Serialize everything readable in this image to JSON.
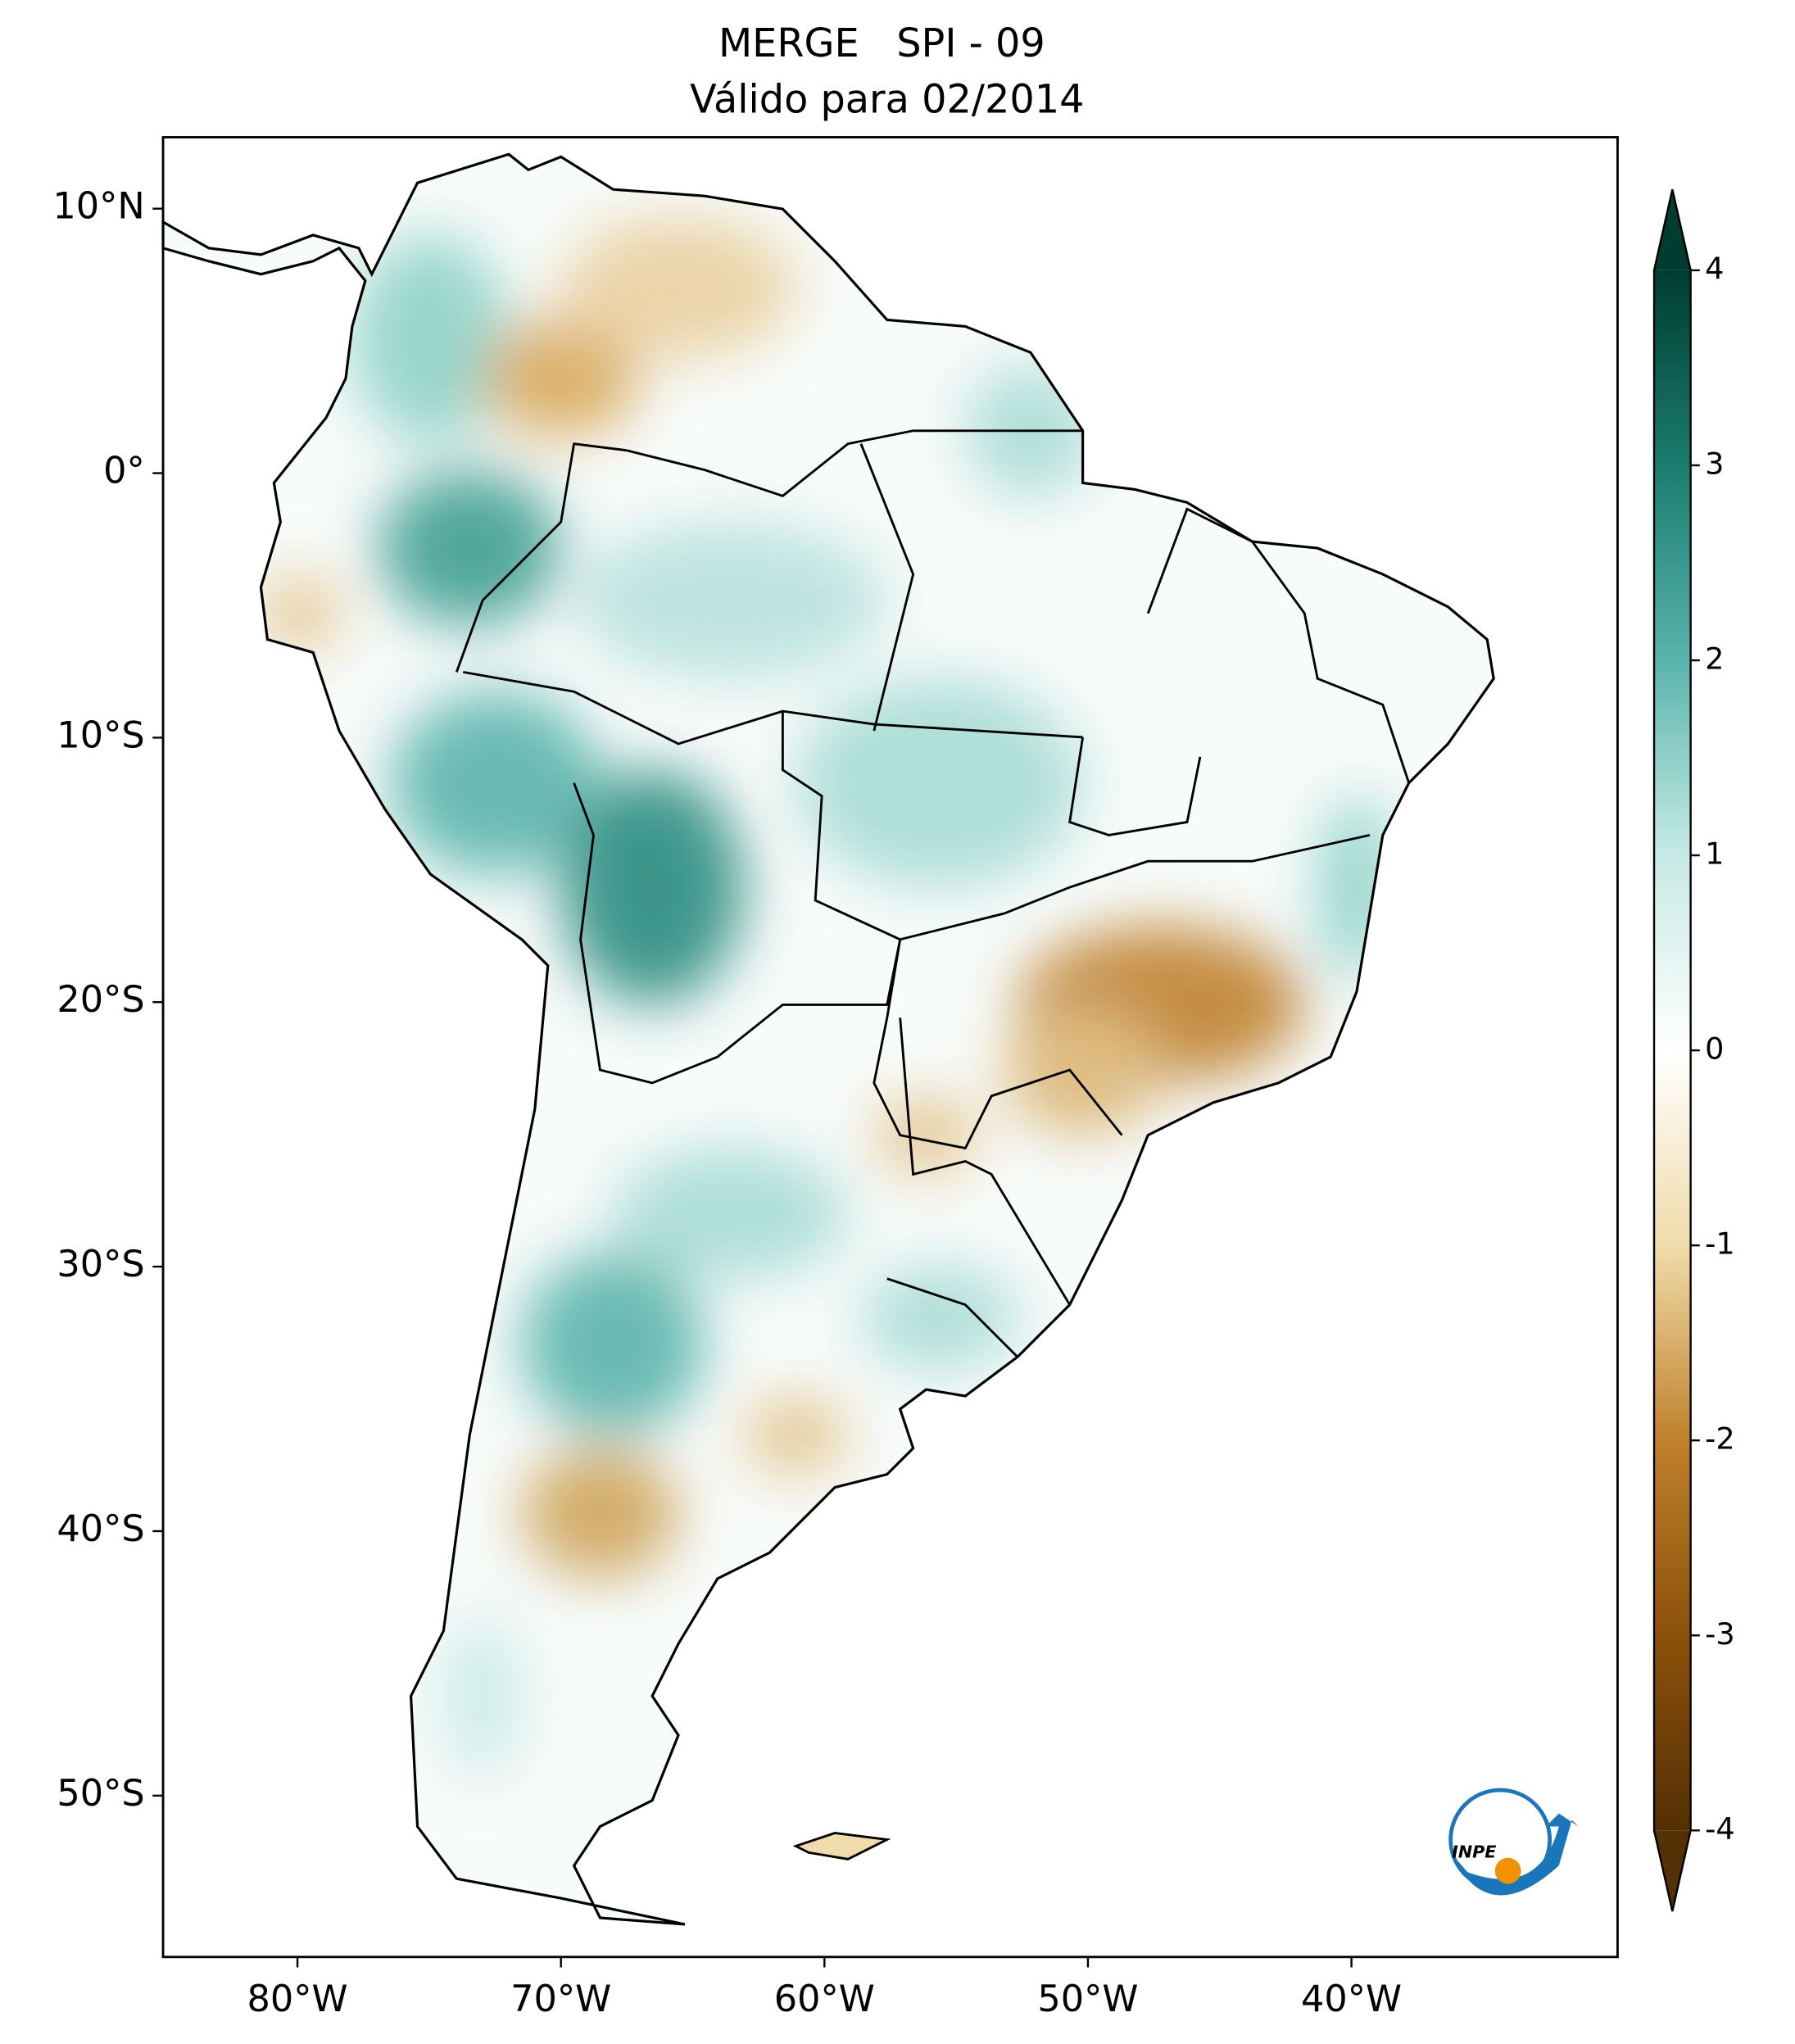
{
  "title": [
    "MERGE   SPI - 09",
    "Válido para 02/2014"
  ],
  "map": {
    "xlim": [
      -85.1,
      -29.9
    ],
    "ylim": [
      -56.1,
      12.7
    ],
    "xticks": [
      {
        "value": -80,
        "label": "80°W"
      },
      {
        "value": -70,
        "label": "70°W"
      },
      {
        "value": -60,
        "label": "60°W"
      },
      {
        "value": -50,
        "label": "50°W"
      },
      {
        "value": -40,
        "label": "40°W"
      }
    ],
    "yticks": [
      {
        "value": 10,
        "label": "10°N"
      },
      {
        "value": 0,
        "label": "0°"
      },
      {
        "value": -10,
        "label": "10°S"
      },
      {
        "value": -20,
        "label": "20°S"
      },
      {
        "value": -30,
        "label": "30°S"
      },
      {
        "value": -40,
        "label": "40°S"
      },
      {
        "value": -50,
        "label": "50°S"
      }
    ]
  },
  "colorbar": {
    "lim": [
      -4,
      4
    ],
    "ticks": [
      -4,
      -3,
      -2,
      -1,
      0,
      1,
      2,
      3,
      4
    ],
    "colors": [
      "#543005",
      "#8c510a",
      "#bf812d",
      "#f0dcaa",
      "#ffffff",
      "#c7eae5",
      "#5ab4ac",
      "#1a7d6f",
      "#003c30"
    ]
  },
  "logo": "INPE"
}
